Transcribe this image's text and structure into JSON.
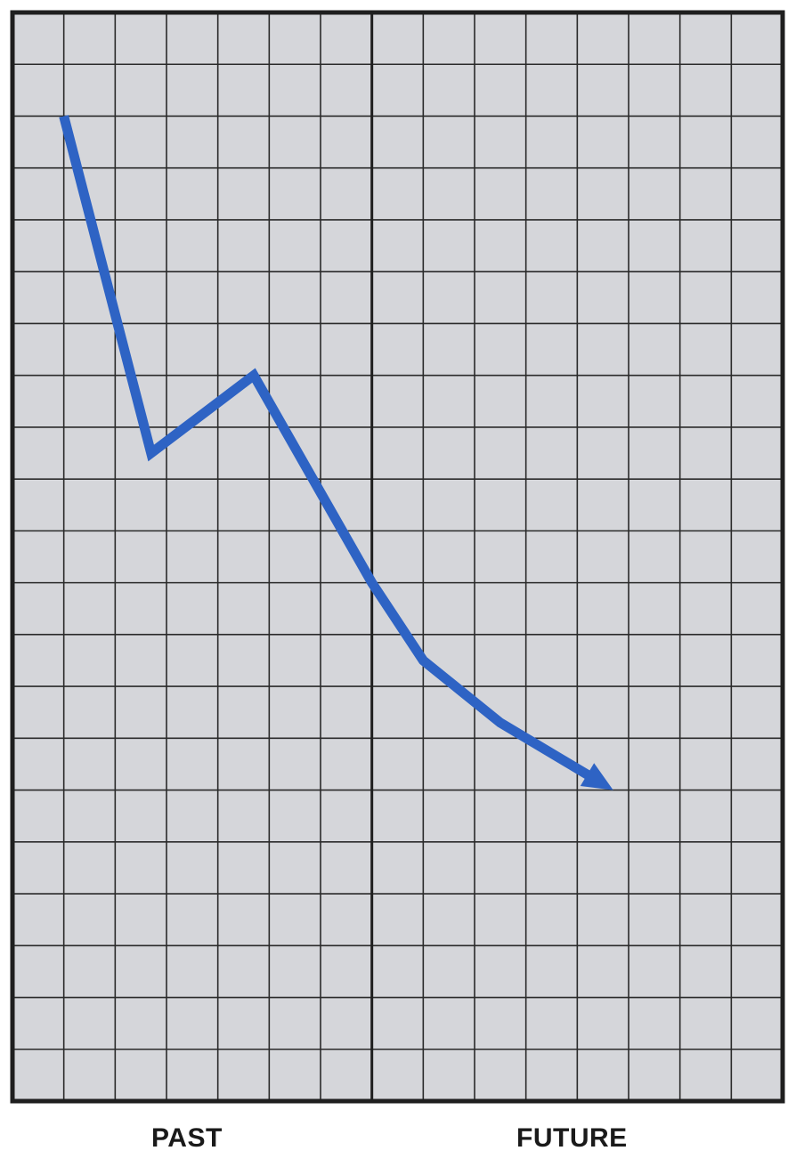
{
  "chart_data": {
    "type": "line",
    "title": "",
    "xlabel": "",
    "ylabel": "",
    "xlim": [
      0,
      15
    ],
    "ylim": [
      0,
      21
    ],
    "grid": true,
    "divider_x": 7,
    "period_labels": [
      "PAST",
      "FUTURE"
    ],
    "series": [
      {
        "color": "#2e63c4",
        "arrow_end": true,
        "points": [
          {
            "x": 1.0,
            "y": 19.0
          },
          {
            "x": 2.7,
            "y": 12.5
          },
          {
            "x": 4.7,
            "y": 14.0
          },
          {
            "x": 7.0,
            "y": 10.0
          },
          {
            "x": 8.0,
            "y": 8.5
          },
          {
            "x": 9.5,
            "y": 7.3
          },
          {
            "x": 11.7,
            "y": 6.0
          }
        ]
      }
    ]
  },
  "colors": {
    "grid_background": "#d5d6da",
    "grid_line": "#2a2a2a",
    "frame": "#1f1f1f",
    "line": "#2e63c4"
  }
}
